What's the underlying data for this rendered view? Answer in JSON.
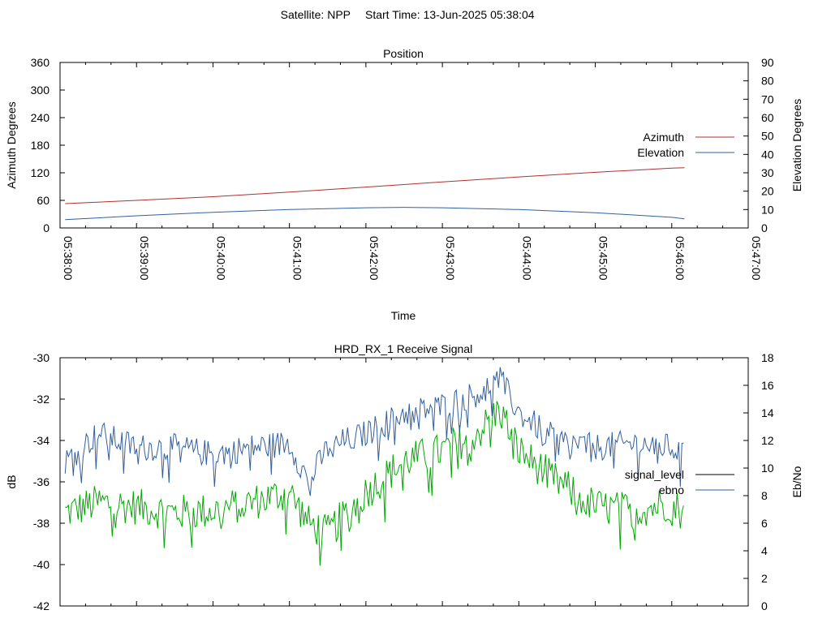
{
  "header": {
    "satellite": "Satellite: NPP",
    "start_time": "Start Time: 13-Jun-2025 05:38:04"
  },
  "colors": {
    "azimuth": "#b03030",
    "elevation": "#3060a0",
    "signal_level": "#000000",
    "ebno": "#3060a0",
    "signal_drawn": "#00aa00"
  },
  "chart_data": [
    {
      "type": "line",
      "title": "Position",
      "xlabel": "Time",
      "ylabel": "Azimuth Degrees",
      "y2label": "Elevation Degrees",
      "x_range": [
        "05:38:00",
        "05:47:00"
      ],
      "x_ticks": [
        "05:38:00",
        "05:39:00",
        "05:40:00",
        "05:41:00",
        "05:42:00",
        "05:43:00",
        "05:44:00",
        "05:45:00",
        "05:46:00",
        "05:47:00"
      ],
      "ylim": [
        0,
        360
      ],
      "y_ticks": [
        0,
        60,
        120,
        180,
        240,
        300,
        360
      ],
      "y2lim": [
        0,
        90
      ],
      "y2_ticks": [
        0,
        10,
        20,
        30,
        40,
        50,
        60,
        70,
        80,
        90
      ],
      "legend_position": "right",
      "series": [
        {
          "name": "Azimuth",
          "axis": "y",
          "x": [
            "05:38:04",
            "05:39:00",
            "05:40:00",
            "05:41:00",
            "05:42:00",
            "05:43:00",
            "05:44:00",
            "05:45:00",
            "05:46:00",
            "05:46:10"
          ],
          "values": [
            53,
            60,
            68,
            78,
            89,
            100,
            111,
            121,
            130,
            131
          ]
        },
        {
          "name": "Elevation",
          "axis": "y2",
          "x": [
            "05:38:04",
            "05:39:00",
            "05:40:00",
            "05:41:00",
            "05:42:00",
            "05:42:30",
            "05:43:00",
            "05:44:00",
            "05:45:00",
            "05:46:00",
            "05:46:10"
          ],
          "values": [
            4.5,
            6.6,
            8.5,
            10,
            11,
            11.2,
            11,
            10,
            8.3,
            5.8,
            5.0
          ]
        }
      ]
    },
    {
      "type": "line",
      "title": "HRD_RX_1 Receive Signal",
      "ylabel": "dB",
      "y2label": "Eb/No",
      "ylim": [
        -42,
        -30
      ],
      "y_ticks": [
        -42,
        -40,
        -38,
        -36,
        -34,
        -32,
        -30
      ],
      "y2lim": [
        0,
        18
      ],
      "y2_ticks": [
        0,
        2,
        4,
        6,
        8,
        10,
        12,
        14,
        16,
        18
      ],
      "legend_position": "right",
      "series": [
        {
          "name": "signal_level",
          "axis": "y",
          "x": [
            "05:38:04",
            "05:38:30",
            "05:39:00",
            "05:39:30",
            "05:40:00",
            "05:40:30",
            "05:41:00",
            "05:41:15",
            "05:41:30",
            "05:42:00",
            "05:42:30",
            "05:43:00",
            "05:43:30",
            "05:43:45",
            "05:44:00",
            "05:44:30",
            "05:45:00",
            "05:45:30",
            "05:46:00",
            "05:46:10"
          ],
          "values": [
            -37.5,
            -37.0,
            -37.2,
            -37.5,
            -37.4,
            -37.0,
            -36.5,
            -38.0,
            -38.5,
            -36.5,
            -35.0,
            -34.5,
            -33.5,
            -32.5,
            -34.5,
            -36.0,
            -37.2,
            -37.4,
            -37.0,
            -37.6
          ]
        },
        {
          "name": "ebno",
          "axis": "y2",
          "x": [
            "05:38:04",
            "05:38:30",
            "05:39:00",
            "05:39:30",
            "05:40:00",
            "05:40:30",
            "05:41:00",
            "05:41:15",
            "05:41:30",
            "05:42:00",
            "05:42:30",
            "05:43:00",
            "05:43:30",
            "05:43:45",
            "05:44:00",
            "05:44:30",
            "05:45:00",
            "05:45:30",
            "05:46:00",
            "05:46:10"
          ],
          "values": [
            10.5,
            12.5,
            11.5,
            11.5,
            11.0,
            11.5,
            11.8,
            9.0,
            11.5,
            12.5,
            14.0,
            14.5,
            15.5,
            16.5,
            14.0,
            12.0,
            11.5,
            11.8,
            11.5,
            10.8
          ]
        }
      ]
    }
  ]
}
